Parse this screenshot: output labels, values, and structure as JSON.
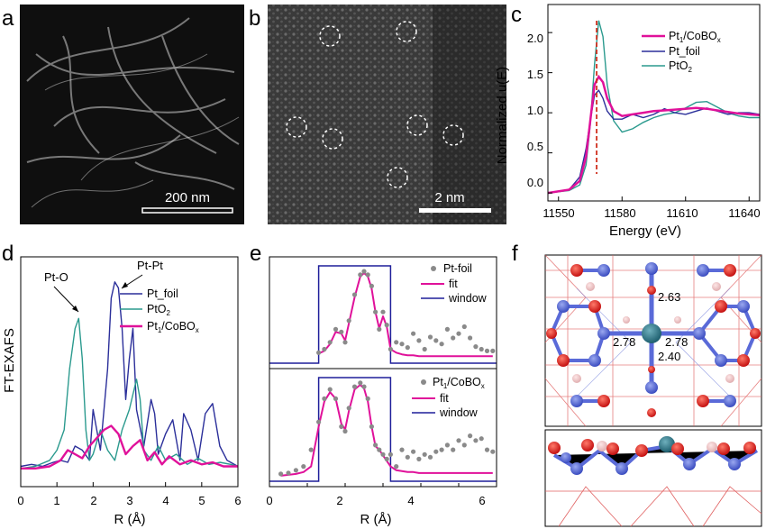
{
  "panels": {
    "a": {
      "label": "a",
      "scale_bar": "200 nm"
    },
    "b": {
      "label": "b",
      "scale_bar": "2 nm"
    },
    "c": {
      "label": "c"
    },
    "d": {
      "label": "d"
    },
    "e": {
      "label": "e"
    },
    "f": {
      "label": "f",
      "bond_lengths": [
        "2.63",
        "2.78",
        "2.78",
        "2.40"
      ]
    }
  },
  "colors": {
    "pt1": "#e0119a",
    "foil": "#2b2f9a",
    "pto2": "#2b9a8e",
    "dash": "#d03020",
    "dots": "#8a8a8a",
    "window": "#1f1f9a"
  },
  "chart_data": [
    {
      "id": "c",
      "type": "line",
      "xlabel": "Energy (eV)",
      "ylabel": "Normalized u(E)",
      "xlim": [
        11545,
        11645
      ],
      "ylim": [
        -0.1,
        2.35
      ],
      "xticks": [
        "11550",
        "11580",
        "11610",
        "11640"
      ],
      "yticks": [
        "0.0",
        "0.5",
        "1.0",
        "1.5",
        "2.0"
      ],
      "legend": [
        "Pt",
        "1",
        "/CoBO",
        "x",
        "Pt_foil",
        "PtO",
        "2"
      ],
      "marker_x": 11568,
      "series": [
        {
          "name": "Pt1/CoBOx",
          "x": [
            11545,
            11555,
            11560,
            11563,
            11565,
            11567,
            11569,
            11571,
            11573,
            11576,
            11580,
            11585,
            11590,
            11595,
            11600,
            11605,
            11610,
            11615,
            11620,
            11625,
            11630,
            11635,
            11640,
            11645
          ],
          "y": [
            0.0,
            0.04,
            0.15,
            0.45,
            0.9,
            1.35,
            1.45,
            1.38,
            1.18,
            1.02,
            0.96,
            0.98,
            1.0,
            1.02,
            1.03,
            1.04,
            1.05,
            1.06,
            1.05,
            1.03,
            1.01,
            0.99,
            0.98,
            0.97
          ]
        },
        {
          "name": "Pt_foil",
          "x": [
            11545,
            11555,
            11560,
            11563,
            11565,
            11567,
            11569,
            11571,
            11573,
            11576,
            11580,
            11585,
            11590,
            11595,
            11600,
            11605,
            11610,
            11615,
            11620,
            11625,
            11630,
            11635,
            11640,
            11645
          ],
          "y": [
            0.0,
            0.04,
            0.2,
            0.55,
            0.9,
            1.22,
            1.28,
            1.18,
            1.02,
            0.92,
            0.92,
            0.98,
            0.94,
            0.98,
            1.05,
            1.0,
            0.98,
            1.02,
            1.06,
            1.02,
            0.98,
            1.0,
            1.0,
            0.98
          ]
        },
        {
          "name": "PtO2",
          "x": [
            11545,
            11555,
            11560,
            11563,
            11565,
            11567,
            11569,
            11571,
            11573,
            11576,
            11580,
            11585,
            11590,
            11595,
            11600,
            11605,
            11610,
            11615,
            11620,
            11625,
            11630,
            11635,
            11640,
            11645
          ],
          "y": [
            0.0,
            0.03,
            0.1,
            0.35,
            0.85,
            1.6,
            2.15,
            1.95,
            1.35,
            0.9,
            0.76,
            0.8,
            0.88,
            0.94,
            0.98,
            1.0,
            1.06,
            1.13,
            1.14,
            1.07,
            1.0,
            0.96,
            0.94,
            0.94
          ]
        }
      ]
    },
    {
      "id": "d",
      "type": "line",
      "xlabel": "R (Å)",
      "ylabel": "FT-EXAFS",
      "xlim": [
        0,
        6
      ],
      "xticks": [
        "0",
        "1",
        "2",
        "3",
        "4",
        "5",
        "6"
      ],
      "legend": [
        "Pt_foil",
        "PtO",
        "2",
        "Pt",
        "1",
        "/CoBO",
        "x"
      ],
      "annotations": [
        "Pt-O",
        "Pt-Pt"
      ],
      "series": [
        {
          "name": "Pt_foil",
          "x": [
            0,
            0.3,
            0.6,
            0.9,
            1.1,
            1.3,
            1.5,
            1.7,
            1.9,
            2.0,
            2.2,
            2.4,
            2.5,
            2.6,
            2.7,
            2.8,
            2.9,
            3.0,
            3.1,
            3.2,
            3.4,
            3.6,
            3.7,
            3.8,
            4.0,
            4.2,
            4.4,
            4.5,
            4.7,
            4.9,
            5.1,
            5.3,
            5.5,
            5.7,
            6.0
          ],
          "y": [
            0.02,
            0.03,
            0.02,
            0.04,
            0.05,
            0.04,
            0.12,
            0.1,
            0.05,
            0.3,
            0.1,
            0.5,
            0.85,
            0.93,
            0.9,
            0.7,
            0.35,
            0.55,
            0.7,
            0.3,
            0.12,
            0.35,
            0.28,
            0.08,
            0.18,
            0.25,
            0.05,
            0.28,
            0.2,
            0.05,
            0.28,
            0.33,
            0.12,
            0.05,
            0.02
          ]
        },
        {
          "name": "PtO2",
          "x": [
            0,
            0.4,
            0.8,
            1.0,
            1.2,
            1.35,
            1.5,
            1.6,
            1.7,
            1.8,
            1.9,
            2.0,
            2.2,
            2.4,
            2.6,
            2.8,
            3.0,
            3.2,
            3.3,
            3.4,
            3.6,
            3.8,
            4.0,
            4.3,
            4.6,
            4.9,
            5.2,
            5.5,
            5.8,
            6.0
          ],
          "y": [
            0.01,
            0.02,
            0.05,
            0.1,
            0.2,
            0.5,
            0.7,
            0.75,
            0.55,
            0.2,
            0.05,
            0.08,
            0.2,
            0.1,
            0.05,
            0.2,
            0.3,
            0.45,
            0.35,
            0.1,
            0.05,
            0.12,
            0.05,
            0.08,
            0.03,
            0.06,
            0.03,
            0.04,
            0.03,
            0.02
          ]
        },
        {
          "name": "Pt1/CoBOx",
          "x": [
            0,
            0.4,
            0.8,
            1.1,
            1.3,
            1.5,
            1.7,
            1.9,
            2.1,
            2.3,
            2.5,
            2.7,
            2.9,
            3.1,
            3.3,
            3.5,
            3.7,
            3.9,
            4.1,
            4.4,
            4.7,
            5.0,
            5.3,
            5.6,
            6.0
          ],
          "y": [
            0.01,
            0.01,
            0.02,
            0.05,
            0.1,
            0.08,
            0.06,
            0.12,
            0.16,
            0.2,
            0.22,
            0.18,
            0.08,
            0.12,
            0.15,
            0.05,
            0.09,
            0.03,
            0.07,
            0.03,
            0.05,
            0.03,
            0.04,
            0.02,
            0.02
          ]
        }
      ]
    },
    {
      "id": "e-top",
      "type": "scatter",
      "xlim": [
        0,
        6
      ],
      "legend": [
        "Pt-foil",
        "fit",
        "window"
      ],
      "window": [
        1.3,
        3.2
      ],
      "x": [
        1.3,
        1.45,
        1.6,
        1.75,
        1.9,
        2.0,
        2.1,
        2.25,
        2.4,
        2.5,
        2.6,
        2.7,
        2.8,
        2.9,
        3.0,
        3.1,
        3.2,
        3.35,
        3.5,
        3.65,
        3.8,
        3.95,
        4.1,
        4.25,
        4.4,
        4.55,
        4.7,
        4.85,
        5.0,
        5.15,
        5.3,
        5.45,
        5.6,
        5.75,
        5.9
      ],
      "series": [
        {
          "name": "Pt-foil",
          "values": [
            0.08,
            0.12,
            0.2,
            0.35,
            0.32,
            0.2,
            0.45,
            0.75,
            0.98,
            1.02,
            0.98,
            0.85,
            0.55,
            0.35,
            0.55,
            0.4,
            0.12,
            0.2,
            0.18,
            0.14,
            0.3,
            0.22,
            0.12,
            0.26,
            0.22,
            0.18,
            0.35,
            0.25,
            0.3,
            0.38,
            0.25,
            0.15,
            0.12,
            0.1,
            0.1
          ]
        },
        {
          "name": "fit",
          "values": [
            0.07,
            0.1,
            0.18,
            0.32,
            0.3,
            0.22,
            0.42,
            0.72,
            0.96,
            1.0,
            0.96,
            0.82,
            0.55,
            0.36,
            0.5,
            0.38,
            0.12,
            0.08,
            0.06,
            0.05,
            0.05,
            0.04,
            0.04,
            0.04,
            0.04,
            0.04,
            0.04,
            0.04,
            0.04,
            0.04,
            0.04,
            0.04,
            0.04,
            0.04,
            0.04
          ]
        }
      ]
    },
    {
      "id": "e-bottom",
      "type": "scatter",
      "xlabel": "R (Å)",
      "xlim": [
        0,
        6
      ],
      "xticks": [
        "0",
        "2",
        "4",
        "6"
      ],
      "legend": [
        "Pt",
        "1",
        "/CoBO",
        "x",
        "fit",
        "window"
      ],
      "window": [
        1.3,
        3.2
      ],
      "x": [
        0.3,
        0.5,
        0.7,
        0.9,
        1.1,
        1.3,
        1.45,
        1.6,
        1.75,
        1.9,
        2.0,
        2.1,
        2.25,
        2.4,
        2.5,
        2.6,
        2.7,
        2.8,
        2.9,
        3.0,
        3.1,
        3.2,
        3.35,
        3.5,
        3.65,
        3.8,
        3.95,
        4.1,
        4.25,
        4.4,
        4.55,
        4.7,
        4.85,
        5.0,
        5.15,
        5.3,
        5.45,
        5.6,
        5.75,
        5.9
      ],
      "series": [
        {
          "name": "Pt1/CoBOx",
          "values": [
            0.04,
            0.05,
            0.08,
            0.12,
            0.3,
            0.6,
            0.85,
            0.95,
            0.85,
            0.55,
            0.5,
            0.75,
            0.98,
            1.02,
            0.98,
            0.85,
            0.55,
            0.35,
            0.3,
            0.25,
            0.2,
            0.25,
            0.12,
            0.3,
            0.22,
            0.28,
            0.2,
            0.25,
            0.22,
            0.28,
            0.3,
            0.35,
            0.3,
            0.4,
            0.35,
            0.45,
            0.4,
            0.42,
            0.3,
            0.28
          ]
        },
        {
          "name": "fit",
          "values": [
            0.02,
            0.03,
            0.04,
            0.06,
            0.12,
            0.55,
            0.82,
            0.92,
            0.85,
            0.58,
            0.52,
            0.72,
            0.95,
            1.0,
            0.96,
            0.82,
            0.55,
            0.34,
            0.3,
            0.24,
            0.18,
            0.12,
            0.08,
            0.07,
            0.06,
            0.06,
            0.05,
            0.05,
            0.05,
            0.05,
            0.05,
            0.05,
            0.05,
            0.05,
            0.05,
            0.05,
            0.05,
            0.05,
            0.05,
            0.05
          ]
        }
      ]
    }
  ]
}
